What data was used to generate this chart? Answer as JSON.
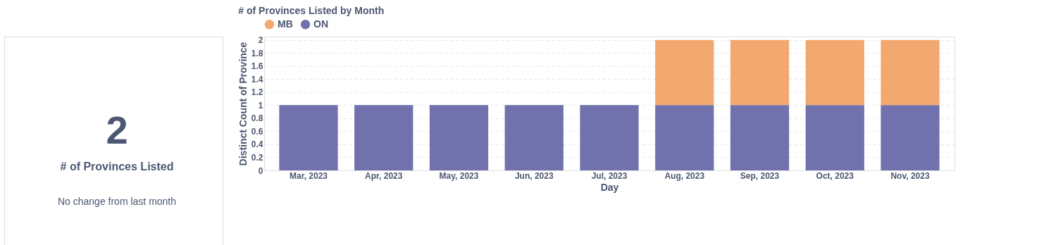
{
  "chart_data": [
    {
      "type": "other",
      "title": "# of Provinces Listed",
      "annotations": [
        "2",
        "No change from last month"
      ]
    },
    {
      "type": "bar",
      "title": "# of Provinces Listed by Month",
      "xlabel": "Day",
      "ylabel": "Distinct Count of Province",
      "categories": [
        "Mar, 2023",
        "Apr, 2023",
        "May, 2023",
        "Jun, 2023",
        "Jul, 2023",
        "Aug, 2023",
        "Sep, 2023",
        "Oct, 2023",
        "Nov, 2023"
      ],
      "series": [
        {
          "name": "ON",
          "color": "#7172ad",
          "values": [
            1,
            1,
            1,
            1,
            1,
            1,
            1,
            1,
            1
          ]
        },
        {
          "name": "MB",
          "color": "#f2a86f",
          "values": [
            null,
            null,
            null,
            null,
            null,
            1,
            1,
            1,
            1
          ]
        }
      ],
      "stacked": true,
      "ylim": [
        0,
        2.05
      ],
      "yticks": [
        0,
        0.2,
        0.4,
        0.6,
        0.8,
        1,
        1.2,
        1.4,
        1.6,
        1.8,
        2
      ],
      "grid": "y",
      "legend": "top left"
    }
  ]
}
